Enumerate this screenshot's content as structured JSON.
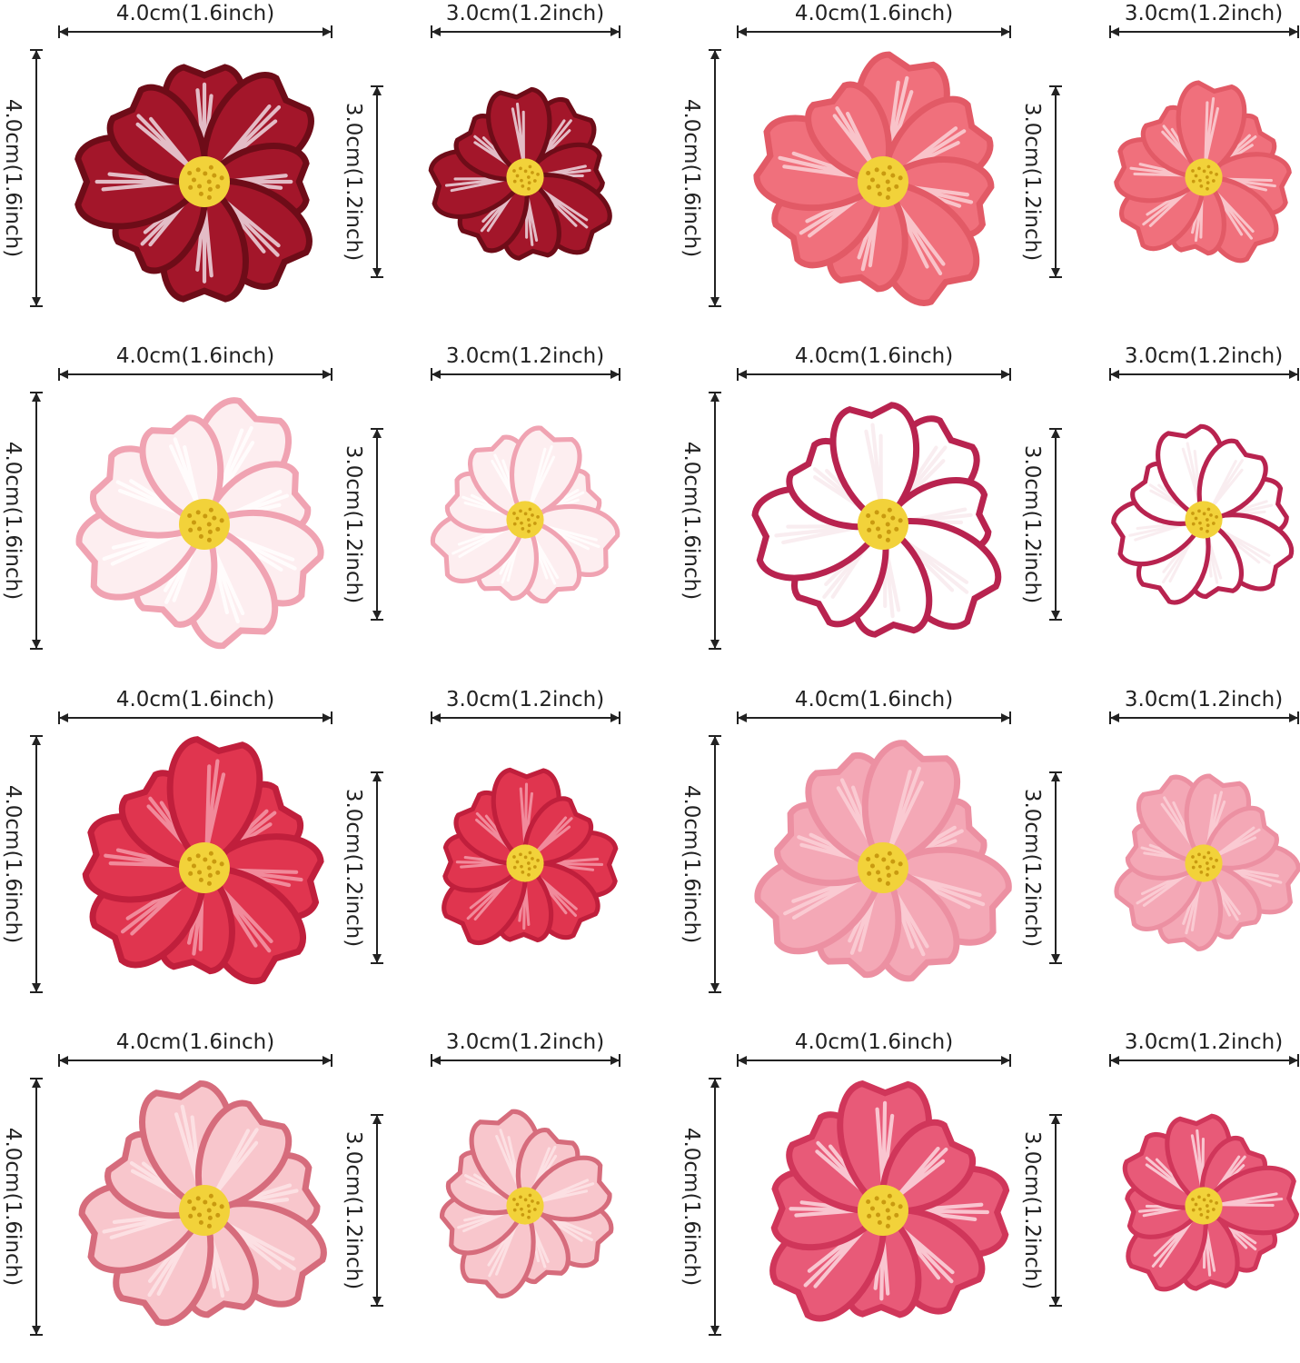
{
  "labels": {
    "large": "4.0cm(1.6inch)",
    "small": "3.0cm(1.2inch)"
  },
  "colors": {
    "dimension_line": "#222222",
    "flower_center": "#f2d23a",
    "flower_center_dots": "#c99a10"
  },
  "flower_sets": [
    {
      "name": "dark-red-cosmos",
      "petal": "#a3162a",
      "streak": "#f3e6ee",
      "edge": "#6e0c18",
      "petals": 8
    },
    {
      "name": "coral-pink-cosmos",
      "petal": "#f0707c",
      "streak": "#fbd8dc",
      "edge": "#e25a66",
      "petals": 8
    },
    {
      "name": "pale-pink-cosmos",
      "petal": "#fdeef0",
      "streak": "#ffffff",
      "edge": "#f0a3b2",
      "petals": 8
    },
    {
      "name": "white-crimson-cosmos",
      "petal": "#ffffff",
      "streak": "#f7e8ec",
      "edge": "#b8234f",
      "petals": 8
    },
    {
      "name": "crimson-cosmos",
      "petal": "#e0354f",
      "streak": "#f5a0ae",
      "edge": "#c01f3c",
      "petals": 8
    },
    {
      "name": "light-pink-cosmos",
      "petal": "#f4a8b6",
      "streak": "#fbd2da",
      "edge": "#ec90a2",
      "petals": 8
    },
    {
      "name": "blush-pink-cosmos",
      "petal": "#f8c6cc",
      "streak": "#fde6e8",
      "edge": "#d66c7c",
      "petals": 8
    },
    {
      "name": "rose-white-streak-cosmos",
      "petal": "#e85a78",
      "streak": "#fde0e6",
      "edge": "#d0365a",
      "petals": 8
    }
  ]
}
